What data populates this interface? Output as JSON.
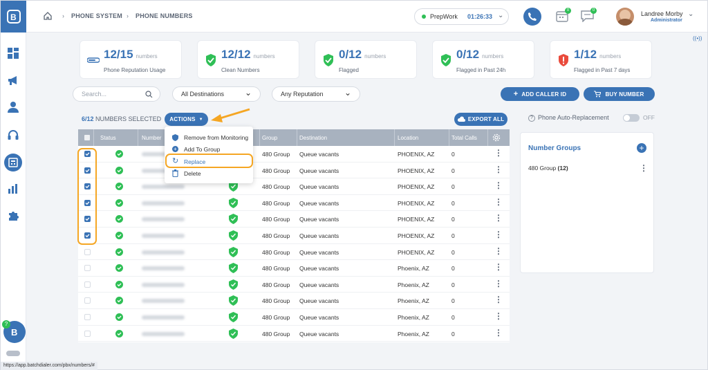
{
  "breadcrumb": {
    "item1": "PHONE SYSTEM",
    "item2": "PHONE NUMBERS"
  },
  "status": {
    "state": "PrepWork",
    "timer": "01:26:33",
    "color": "#2fbf56"
  },
  "notifications": {
    "calendar_badge": "0",
    "chat_badge": "0"
  },
  "user": {
    "name": "Landree Morby",
    "role": "Administrator"
  },
  "stats": [
    {
      "num": "12/15",
      "label": "numbers",
      "caption": "Phone Reputation Usage",
      "icon": "usage-bar-icon"
    },
    {
      "num": "12/12",
      "label": "numbers",
      "caption": "Clean Numbers",
      "icon": "green-shield-icon"
    },
    {
      "num": "0/12",
      "label": "numbers",
      "caption": "Flagged",
      "icon": "green-shield-icon"
    },
    {
      "num": "0/12",
      "label": "numbers",
      "caption": "Flagged in Past 24h",
      "icon": "green-shield-icon"
    },
    {
      "num": "1/12",
      "label": "numbers",
      "caption": "Flagged in Past 7 days",
      "icon": "red-shield-icon"
    }
  ],
  "filters": {
    "search_placeholder": "Search...",
    "destination": "All Destinations",
    "reputation": "Any Reputation"
  },
  "buttons": {
    "add_caller_id": "ADD CALLER ID",
    "buy_number": "BUY NUMBER",
    "actions": "ACTIONS",
    "export_all": "EXPORT ALL"
  },
  "selection": {
    "count": "6/12",
    "text": "NUMBERS SELECTED"
  },
  "actions_menu": [
    "Remove from Monitoring",
    "Add To Group",
    "Replace",
    "Delete"
  ],
  "table": {
    "headers": [
      "Status",
      "Number",
      "Group",
      "Destination",
      "Location",
      "Total Calls"
    ],
    "rows": [
      {
        "selected": true,
        "group": "480 Group",
        "destination": "Queue vacants",
        "location": "PHOENIX, AZ",
        "calls": "0"
      },
      {
        "selected": true,
        "group": "480 Group",
        "destination": "Queue vacants",
        "location": "PHOENIX, AZ",
        "calls": "0"
      },
      {
        "selected": true,
        "group": "480 Group",
        "destination": "Queue vacants",
        "location": "PHOENIX, AZ",
        "calls": "0"
      },
      {
        "selected": true,
        "group": "480 Group",
        "destination": "Queue vacants",
        "location": "PHOENIX, AZ",
        "calls": "0"
      },
      {
        "selected": true,
        "group": "480 Group",
        "destination": "Queue vacants",
        "location": "PHOENIX, AZ",
        "calls": "0"
      },
      {
        "selected": true,
        "group": "480 Group",
        "destination": "Queue vacants",
        "location": "PHOENIX, AZ",
        "calls": "0"
      },
      {
        "selected": false,
        "group": "480 Group",
        "destination": "Queue vacants",
        "location": "PHOENIX, AZ",
        "calls": "0"
      },
      {
        "selected": false,
        "group": "480 Group",
        "destination": "Queue vacants",
        "location": "Phoenix, AZ",
        "calls": "0"
      },
      {
        "selected": false,
        "group": "480 Group",
        "destination": "Queue vacants",
        "location": "Phoenix, AZ",
        "calls": "0"
      },
      {
        "selected": false,
        "group": "480 Group",
        "destination": "Queue vacants",
        "location": "Phoenix, AZ",
        "calls": "0"
      },
      {
        "selected": false,
        "group": "480 Group",
        "destination": "Queue vacants",
        "location": "Phoenix, AZ",
        "calls": "0"
      },
      {
        "selected": false,
        "group": "480 Group",
        "destination": "Queue vacants",
        "location": "Phoenix, AZ",
        "calls": "0"
      }
    ]
  },
  "auto_replacement": {
    "label": "Phone Auto-Replacement",
    "state": "OFF"
  },
  "number_groups": {
    "title": "Number Groups",
    "items": [
      {
        "name": "480 Group",
        "count": "(12)"
      }
    ]
  },
  "help_badge": "?",
  "url_status": "https://app.batchdialer.com/pbx/numbers/#",
  "colors": {
    "accent": "#3a73b5",
    "highlight": "#f5a623",
    "ok": "#2fbf56",
    "danger": "#ea4b3c"
  }
}
